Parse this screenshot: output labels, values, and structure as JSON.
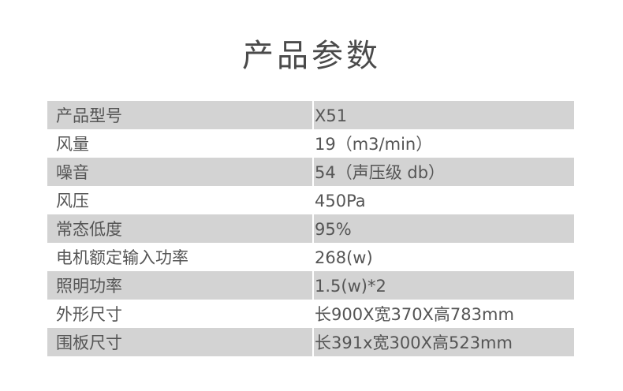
{
  "title": "产品参数",
  "rows": [
    {
      "label": "产品型号",
      "value": "X51"
    },
    {
      "label": "风量",
      "value": "19（m3/min）"
    },
    {
      "label": "噪音",
      "value": "54（声压级 db）"
    },
    {
      "label": "风压",
      "value": "450Pa"
    },
    {
      "label": "常态低度",
      "value": "95%"
    },
    {
      "label": "电机额定输入功率",
      "value": "268(w)"
    },
    {
      "label": "照明功率",
      "value": "1.5(w)*2"
    },
    {
      "label": "外形尺寸",
      "value": "长900X宽370X高783mm"
    },
    {
      "label": "围板尺寸",
      "value": "长391x宽300X高523mm"
    }
  ]
}
